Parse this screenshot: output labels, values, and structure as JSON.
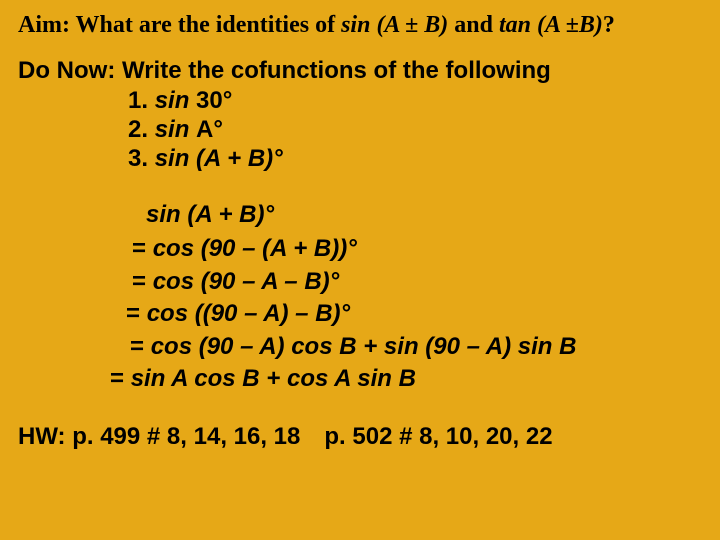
{
  "background_color": "#e6a817",
  "text_color": "#000000",
  "aim": {
    "prefix": "Aim: What are the identities of ",
    "sin": "sin",
    "sin_arg": " (A ± B)",
    "mid": " and ",
    "tan_arg": "tan (A ±B)",
    "suffix": "?"
  },
  "do_now": {
    "heading": "Do Now: Write the cofunctions of the following",
    "items": [
      {
        "num": "1. ",
        "fn": "sin ",
        "arg": "30°"
      },
      {
        "num": " 2. ",
        "fn": "sin ",
        "arg": "A°"
      },
      {
        "num": " 3. ",
        "fn": "sin ",
        "arg": "(A + B)°"
      }
    ]
  },
  "solution": {
    "line0_fn": "sin ",
    "line0_arg": "(A + B)°",
    "line1_pre": "= ",
    "line1_fn": "cos ",
    "line1_rest": "(90 – (A + B))°",
    "line2_pre": "= ",
    "line2_fn": "cos ",
    "line2_rest": "(90 – A – B)°",
    "line3_pre": "= ",
    "line3_fn": "cos ",
    "line3_rest": "((90 – A) – B)°",
    "line4_pre": " = ",
    "line4_fn1": "cos ",
    "line4_a": "(90 – A) ",
    "line4_fn2": "cos ",
    "line4_b": "B + ",
    "line4_fn3": "sin ",
    "line4_c": "(90 – A) ",
    "line4_fn4": "sin ",
    "line4_d": "B",
    "line5_pre": "= ",
    "line5_fn1": "sin ",
    "line5_a": "A ",
    "line5_fn2": "cos ",
    "line5_b": "B + ",
    "line5_fn3": "cos ",
    "line5_c": "A ",
    "line5_fn4": "sin ",
    "line5_d": "B"
  },
  "hw": {
    "left": "HW: p. 499 # 8, 14, 16, 18",
    "right": "p. 502 # 8, 10, 20, 22"
  }
}
